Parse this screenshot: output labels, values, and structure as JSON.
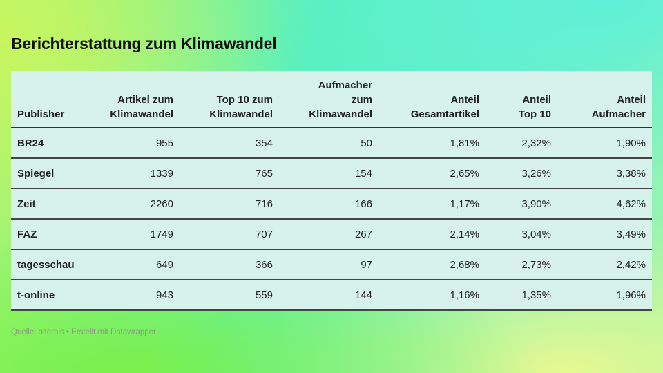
{
  "chart_data": {
    "type": "table",
    "title": "Berichterstattung zum Klimawandel",
    "columns": [
      {
        "key": "publisher",
        "label_lines": [
          "Publisher"
        ],
        "align": "l"
      },
      {
        "key": "artikel",
        "label_lines": [
          "Artikel zum",
          "Klimawandel"
        ],
        "align": "r"
      },
      {
        "key": "top10",
        "label_lines": [
          "Top 10 zum",
          "Klimawandel"
        ],
        "align": "r"
      },
      {
        "key": "aufmacher",
        "label_lines": [
          "Aufmacher",
          "zum",
          "Klimawandel"
        ],
        "align": "r"
      },
      {
        "key": "anteil_gesamt",
        "label_lines": [
          "Anteil",
          "Gesamtartikel"
        ],
        "align": "r"
      },
      {
        "key": "anteil_top10",
        "label_lines": [
          "Anteil",
          "Top 10"
        ],
        "align": "r"
      },
      {
        "key": "anteil_aufmacher",
        "label_lines": [
          "Anteil",
          "Aufmacher"
        ],
        "align": "r"
      }
    ],
    "rows": [
      [
        "BR24",
        "955",
        "354",
        "50",
        "1,81%",
        "2,32%",
        "1,90%"
      ],
      [
        "Spiegel",
        "1339",
        "765",
        "154",
        "2,65%",
        "3,26%",
        "3,38%"
      ],
      [
        "Zeit",
        "2260",
        "716",
        "166",
        "1,17%",
        "3,90%",
        "4,62%"
      ],
      [
        "FAZ",
        "1749",
        "707",
        "267",
        "2,14%",
        "3,04%",
        "3,49%"
      ],
      [
        "tagesschau",
        "649",
        "366",
        "97",
        "2,68%",
        "2,73%",
        "2,42%"
      ],
      [
        "t-online",
        "943",
        "559",
        "144",
        "1,16%",
        "1,35%",
        "1,96%"
      ]
    ],
    "source": "Quelle: azernis • Erstellt mit Datawrapper"
  },
  "colors": {
    "table_background": "#d6f2ea",
    "rule": "#444444",
    "source_text": "#8a9a80"
  }
}
